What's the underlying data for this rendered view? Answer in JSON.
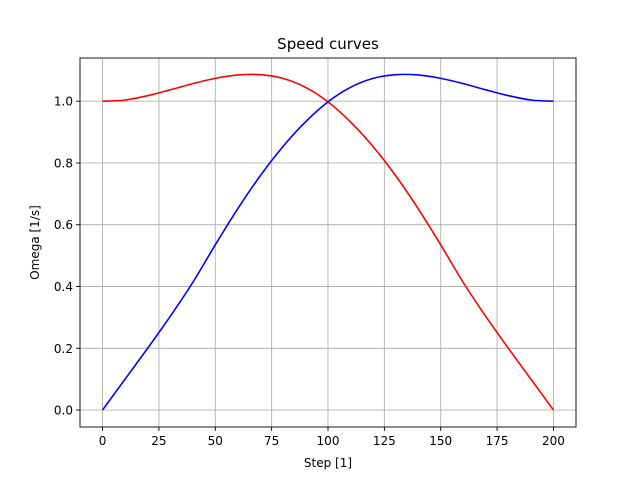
{
  "chart_data": {
    "type": "line",
    "title": "Speed curves",
    "xlabel": "Step [1]",
    "ylabel": "Omega [1/s]",
    "xlim": [
      -10,
      210
    ],
    "ylim": [
      -0.055,
      1.14
    ],
    "x_ticks": [
      0,
      25,
      50,
      75,
      100,
      125,
      150,
      175,
      200
    ],
    "x_tick_labels": [
      "0",
      "25",
      "50",
      "75",
      "100",
      "125",
      "150",
      "175",
      "200"
    ],
    "y_ticks": [
      0.0,
      0.2,
      0.4,
      0.6,
      0.8,
      1.0
    ],
    "y_tick_labels": [
      "0.0",
      "0.2",
      "0.4",
      "0.6",
      "0.8",
      "1.0"
    ],
    "grid": true,
    "x": [
      0,
      10,
      20,
      30,
      40,
      50,
      60,
      70,
      80,
      90,
      100,
      110,
      120,
      130,
      140,
      150,
      160,
      170,
      180,
      190,
      200
    ],
    "series": [
      {
        "color": "#ff0000",
        "values": [
          1.0,
          1.004,
          1.018,
          1.037,
          1.057,
          1.074,
          1.085,
          1.086,
          1.074,
          1.045,
          0.998,
          0.933,
          0.853,
          0.759,
          0.652,
          0.535,
          0.413,
          0.303,
          0.2,
          0.1,
          0.0
        ]
      },
      {
        "color": "#0000ff",
        "values": [
          0.0,
          0.1,
          0.2,
          0.303,
          0.413,
          0.535,
          0.652,
          0.759,
          0.853,
          0.933,
          0.998,
          1.045,
          1.074,
          1.086,
          1.085,
          1.074,
          1.057,
          1.037,
          1.018,
          1.004,
          1.0
        ]
      }
    ]
  }
}
